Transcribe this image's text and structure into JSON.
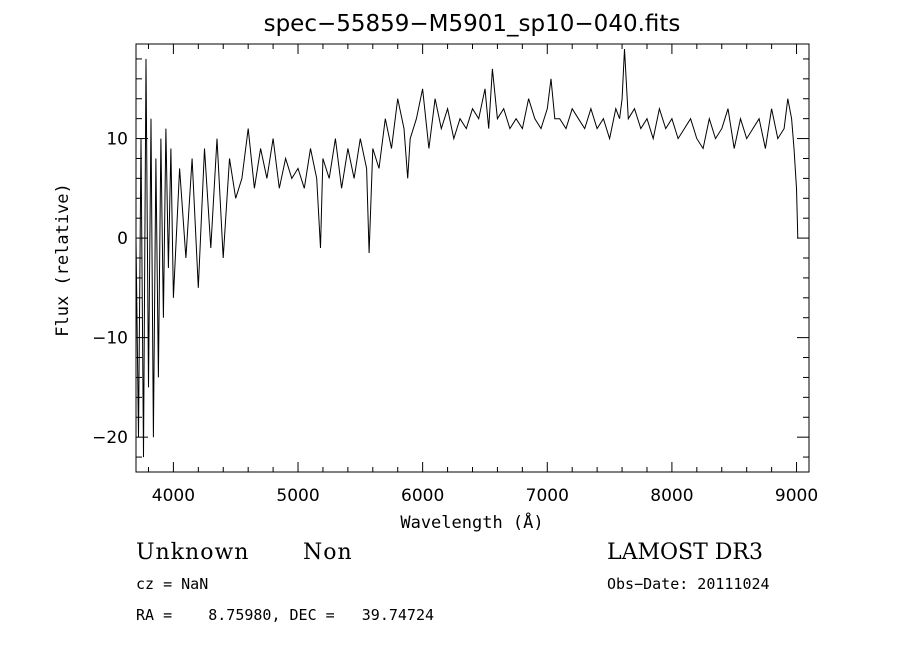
{
  "chart_data": {
    "type": "line",
    "title": "spec−55859−M5901_sp10−040.fits",
    "xlabel": "Wavelength (Å)",
    "ylabel": "Flux (relative)",
    "xlim": [
      3700,
      9100
    ],
    "ylim": [
      -23.5,
      19.5
    ],
    "x_ticks": [
      4000,
      5000,
      6000,
      7000,
      8000,
      9000
    ],
    "x_tick_labels": [
      "4000",
      "5000",
      "6000",
      "7000",
      "8000",
      "9000"
    ],
    "y_ticks": [
      -20,
      -10,
      0,
      10
    ],
    "y_tick_labels": [
      "−20",
      "−10",
      "0",
      "10"
    ],
    "series": [
      {
        "name": "flux",
        "x": [
          3700,
          3720,
          3740,
          3760,
          3780,
          3800,
          3820,
          3840,
          3860,
          3880,
          3900,
          3920,
          3940,
          3960,
          3980,
          4000,
          4050,
          4100,
          4150,
          4200,
          4250,
          4300,
          4350,
          4400,
          4450,
          4500,
          4550,
          4600,
          4650,
          4700,
          4750,
          4800,
          4850,
          4900,
          4950,
          5000,
          5050,
          5100,
          5150,
          5180,
          5200,
          5250,
          5300,
          5350,
          5400,
          5450,
          5500,
          5550,
          5570,
          5600,
          5650,
          5700,
          5750,
          5800,
          5850,
          5880,
          5900,
          5950,
          6000,
          6050,
          6100,
          6150,
          6200,
          6250,
          6300,
          6350,
          6400,
          6450,
          6500,
          6530,
          6560,
          6600,
          6650,
          6700,
          6750,
          6800,
          6850,
          6900,
          6950,
          7000,
          7030,
          7060,
          7100,
          7150,
          7200,
          7250,
          7300,
          7350,
          7400,
          7450,
          7500,
          7550,
          7580,
          7600,
          7620,
          7650,
          7700,
          7750,
          7800,
          7850,
          7900,
          7950,
          8000,
          8050,
          8100,
          8150,
          8200,
          8250,
          8300,
          8350,
          8400,
          8450,
          8500,
          8550,
          8600,
          8650,
          8700,
          8750,
          8800,
          8850,
          8900,
          8930,
          8960,
          8980,
          9000,
          9010
        ],
        "y": [
          0,
          -20,
          10,
          -22,
          18,
          -15,
          12,
          -20,
          8,
          -14,
          10,
          -8,
          11,
          -3,
          9,
          -6,
          7,
          -2,
          8,
          -5,
          9,
          -1,
          10,
          -2,
          8,
          4,
          6,
          11,
          5,
          9,
          6,
          10,
          5,
          8,
          6,
          7,
          5,
          9,
          6,
          -1,
          8,
          6,
          10,
          5,
          9,
          6,
          10,
          7,
          -1.5,
          9,
          7,
          12,
          9,
          14,
          11,
          6,
          10,
          12,
          15,
          9,
          14,
          11,
          13,
          10,
          12,
          11,
          13,
          12,
          15,
          11,
          17,
          12,
          13,
          11,
          12,
          11,
          14,
          12,
          11,
          13,
          16,
          12,
          12,
          11,
          13,
          12,
          11,
          13,
          11,
          12,
          10,
          13,
          12,
          14,
          19,
          12,
          13,
          11,
          12,
          10,
          13,
          11,
          12,
          10,
          11,
          12,
          10,
          9,
          12,
          10,
          11,
          13,
          9,
          12,
          10,
          11,
          12,
          9,
          13,
          10,
          11,
          14,
          12,
          9,
          5,
          0
        ]
      }
    ]
  },
  "annotations": {
    "object_class": "Unknown",
    "object_subclass": "Non",
    "survey": "LAMOST DR3",
    "redshift": "cz = NaN",
    "obs_date": "Obs−Date: 20111024",
    "coords": "RA =    8.75980, DEC =   39.74724"
  }
}
